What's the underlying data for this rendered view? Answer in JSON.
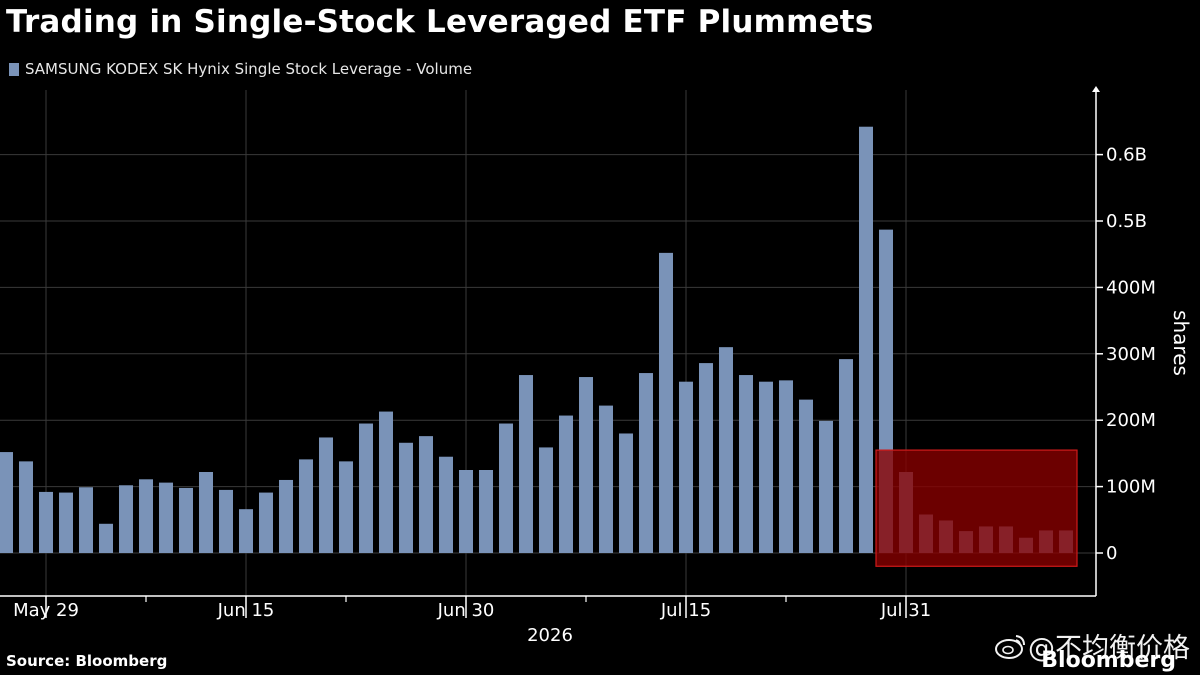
{
  "colors": {
    "bar": "#7a93b8",
    "highlight": "#8a0000",
    "highlight_border": "#d01a1a",
    "grid": "#3a3a3a"
  },
  "chart_data": {
    "type": "bar",
    "title": "Trading in Single-Stock Leveraged ETF Plummets",
    "legend": "SAMSUNG KODEX SK Hynix Single Stock Leverage - Volume",
    "ylabel": "shares",
    "ylim": [
      -20000000,
      700000000
    ],
    "yticks": [
      {
        "value": 0,
        "label": "0"
      },
      {
        "value": 100000000,
        "label": "100M"
      },
      {
        "value": 200000000,
        "label": "200M"
      },
      {
        "value": 300000000,
        "label": "300M"
      },
      {
        "value": 400000000,
        "label": "400M"
      },
      {
        "value": 500000000,
        "label": "0.5B"
      },
      {
        "value": 600000000,
        "label": "0.6B"
      }
    ],
    "xticks": [
      {
        "index": 2,
        "label": "May 29"
      },
      {
        "index": 12,
        "label": "Jun 15"
      },
      {
        "index": 23,
        "label": "Jun 30"
      },
      {
        "index": 34,
        "label": "Jul 15"
      },
      {
        "index": 45,
        "label": "Jul 31"
      }
    ],
    "minor_ticks": [
      7,
      17,
      29,
      39
    ],
    "year_label": "2026",
    "values": [
      152000000,
      138000000,
      92000000,
      91000000,
      99000000,
      44000000,
      102000000,
      111000000,
      106000000,
      98000000,
      122000000,
      95000000,
      66000000,
      91000000,
      110000000,
      141000000,
      174000000,
      138000000,
      195000000,
      213000000,
      166000000,
      176000000,
      145000000,
      125000000,
      125000000,
      195000000,
      268000000,
      159000000,
      207000000,
      265000000,
      222000000,
      180000000,
      271000000,
      452000000,
      258000000,
      286000000,
      310000000,
      268000000,
      258000000,
      260000000,
      231000000,
      199000000,
      292000000,
      642000000,
      487000000,
      122000000,
      58000000,
      49000000,
      33000000,
      40000000,
      40000000,
      23000000,
      34000000,
      34000000
    ],
    "highlight": {
      "start_index": 44,
      "end_index": 53,
      "ymin": -20000000,
      "ymax": 155000000
    }
  },
  "footer": {
    "source": "Source: Bloomberg",
    "watermark": "@不均衡价格",
    "brand": "Bloomberg"
  }
}
